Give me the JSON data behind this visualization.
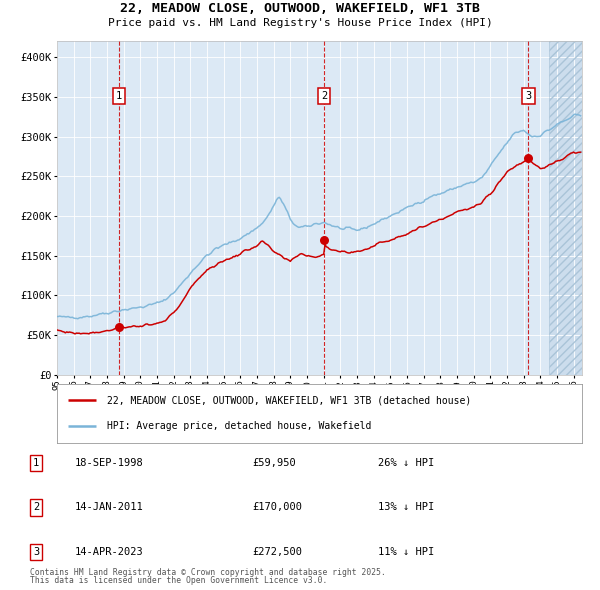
{
  "title1": "22, MEADOW CLOSE, OUTWOOD, WAKEFIELD, WF1 3TB",
  "title2": "Price paid vs. HM Land Registry's House Price Index (HPI)",
  "legend_label1": "22, MEADOW CLOSE, OUTWOOD, WAKEFIELD, WF1 3TB (detached house)",
  "legend_label2": "HPI: Average price, detached house, Wakefield",
  "footer1": "Contains HM Land Registry data © Crown copyright and database right 2025.",
  "footer2": "This data is licensed under the Open Government Licence v3.0.",
  "transactions": [
    {
      "num": 1,
      "date": "18-SEP-1998",
      "price": 59950,
      "pct": "26%",
      "dir": "↓"
    },
    {
      "num": 2,
      "date": "14-JAN-2011",
      "price": 170000,
      "pct": "13%",
      "dir": "↓"
    },
    {
      "num": 3,
      "date": "14-APR-2023",
      "price": 272500,
      "pct": "11%",
      "dir": "↓"
    }
  ],
  "sale_dates_decimal": [
    1998.72,
    2011.04,
    2023.29
  ],
  "sale_prices": [
    59950,
    170000,
    272500
  ],
  "hpi_color": "#7ab4d8",
  "price_color": "#cc0000",
  "vline_color": "#cc0000",
  "background_color": "#dce9f5",
  "ylim": [
    0,
    420000
  ],
  "xlim_start": 1995.0,
  "xlim_end": 2026.5,
  "hpi_anchors": [
    [
      1995.0,
      73000
    ],
    [
      1995.5,
      72000
    ],
    [
      1996.0,
      72500
    ],
    [
      1996.5,
      73000
    ],
    [
      1997.0,
      74000
    ],
    [
      1997.5,
      76000
    ],
    [
      1998.0,
      78000
    ],
    [
      1998.5,
      80000
    ],
    [
      1999.0,
      82000
    ],
    [
      1999.5,
      83000
    ],
    [
      2000.0,
      85000
    ],
    [
      2000.5,
      87000
    ],
    [
      2001.0,
      90000
    ],
    [
      2001.5,
      95000
    ],
    [
      2002.0,
      103000
    ],
    [
      2002.5,
      115000
    ],
    [
      2003.0,
      128000
    ],
    [
      2003.5,
      140000
    ],
    [
      2004.0,
      150000
    ],
    [
      2004.5,
      158000
    ],
    [
      2005.0,
      163000
    ],
    [
      2005.5,
      167000
    ],
    [
      2006.0,
      172000
    ],
    [
      2006.5,
      178000
    ],
    [
      2007.0,
      185000
    ],
    [
      2007.5,
      195000
    ],
    [
      2008.0,
      212000
    ],
    [
      2008.3,
      225000
    ],
    [
      2008.7,
      210000
    ],
    [
      2009.0,
      195000
    ],
    [
      2009.5,
      185000
    ],
    [
      2010.0,
      186000
    ],
    [
      2010.5,
      190000
    ],
    [
      2011.0,
      192000
    ],
    [
      2011.5,
      188000
    ],
    [
      2012.0,
      184000
    ],
    [
      2012.5,
      183000
    ],
    [
      2013.0,
      182000
    ],
    [
      2013.5,
      185000
    ],
    [
      2014.0,
      190000
    ],
    [
      2014.5,
      195000
    ],
    [
      2015.0,
      200000
    ],
    [
      2015.5,
      205000
    ],
    [
      2016.0,
      210000
    ],
    [
      2016.5,
      215000
    ],
    [
      2017.0,
      220000
    ],
    [
      2017.5,
      225000
    ],
    [
      2018.0,
      228000
    ],
    [
      2018.5,
      232000
    ],
    [
      2019.0,
      236000
    ],
    [
      2019.5,
      240000
    ],
    [
      2020.0,
      242000
    ],
    [
      2020.5,
      248000
    ],
    [
      2021.0,
      262000
    ],
    [
      2021.5,
      278000
    ],
    [
      2022.0,
      292000
    ],
    [
      2022.5,
      305000
    ],
    [
      2023.0,
      308000
    ],
    [
      2023.5,
      300000
    ],
    [
      2024.0,
      302000
    ],
    [
      2024.5,
      308000
    ],
    [
      2025.0,
      315000
    ],
    [
      2025.5,
      320000
    ],
    [
      2026.0,
      326000
    ]
  ],
  "price_anchors": [
    [
      1995.0,
      56000
    ],
    [
      1995.5,
      54000
    ],
    [
      1996.0,
      52500
    ],
    [
      1996.5,
      52000
    ],
    [
      1997.0,
      53000
    ],
    [
      1997.5,
      54000
    ],
    [
      1998.0,
      55000
    ],
    [
      1998.72,
      59950
    ],
    [
      1999.0,
      60000
    ],
    [
      1999.5,
      60500
    ],
    [
      2000.0,
      61000
    ],
    [
      2000.5,
      62000
    ],
    [
      2001.0,
      64000
    ],
    [
      2001.5,
      68000
    ],
    [
      2002.0,
      78000
    ],
    [
      2002.5,
      92000
    ],
    [
      2003.0,
      108000
    ],
    [
      2003.5,
      122000
    ],
    [
      2004.0,
      132000
    ],
    [
      2004.5,
      138000
    ],
    [
      2005.0,
      143000
    ],
    [
      2005.5,
      148000
    ],
    [
      2006.0,
      152000
    ],
    [
      2006.5,
      158000
    ],
    [
      2007.0,
      163000
    ],
    [
      2007.3,
      168000
    ],
    [
      2007.5,
      165000
    ],
    [
      2008.0,
      155000
    ],
    [
      2008.5,
      148000
    ],
    [
      2009.0,
      142000
    ],
    [
      2009.3,
      148000
    ],
    [
      2009.6,
      153000
    ],
    [
      2010.0,
      150000
    ],
    [
      2010.5,
      148000
    ],
    [
      2011.0,
      152000
    ],
    [
      2011.04,
      170000
    ],
    [
      2011.1,
      162000
    ],
    [
      2011.5,
      158000
    ],
    [
      2012.0,
      155000
    ],
    [
      2012.5,
      154000
    ],
    [
      2013.0,
      155000
    ],
    [
      2013.5,
      158000
    ],
    [
      2014.0,
      162000
    ],
    [
      2014.5,
      167000
    ],
    [
      2015.0,
      170000
    ],
    [
      2015.5,
      174000
    ],
    [
      2016.0,
      178000
    ],
    [
      2016.5,
      182000
    ],
    [
      2017.0,
      187000
    ],
    [
      2017.5,
      192000
    ],
    [
      2018.0,
      196000
    ],
    [
      2018.5,
      200000
    ],
    [
      2019.0,
      205000
    ],
    [
      2019.5,
      208000
    ],
    [
      2020.0,
      210000
    ],
    [
      2020.5,
      218000
    ],
    [
      2021.0,
      228000
    ],
    [
      2021.5,
      242000
    ],
    [
      2022.0,
      255000
    ],
    [
      2022.5,
      263000
    ],
    [
      2023.0,
      268000
    ],
    [
      2023.29,
      272500
    ],
    [
      2023.5,
      268000
    ],
    [
      2024.0,
      260000
    ],
    [
      2024.5,
      263000
    ],
    [
      2025.0,
      268000
    ],
    [
      2025.5,
      274000
    ],
    [
      2026.0,
      280000
    ]
  ]
}
